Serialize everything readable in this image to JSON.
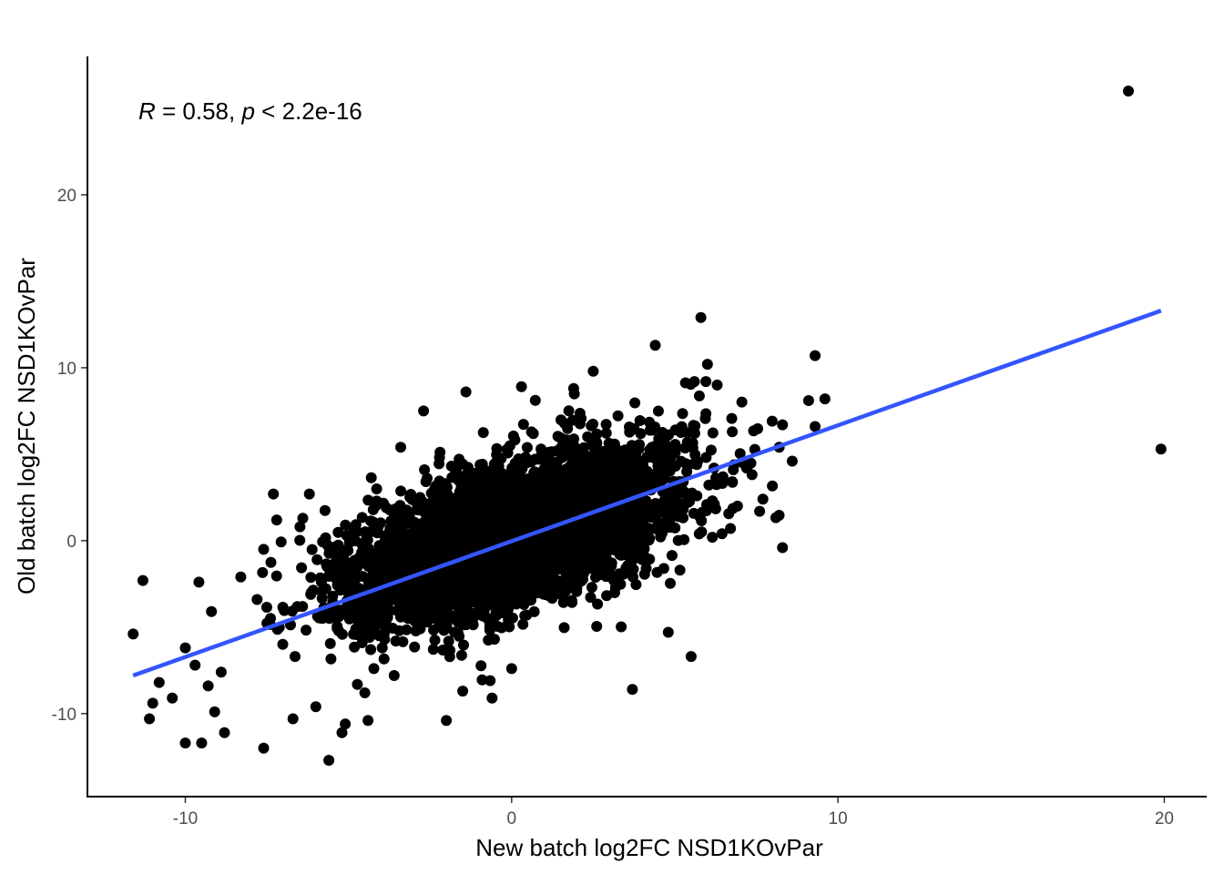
{
  "chart_data": {
    "type": "scatter",
    "title": "",
    "xlabel": "New batch log2FC NSD1KOvPar",
    "ylabel": "Old batch log2FC NSD1KOvPar",
    "xlim": [
      -13,
      21.3
    ],
    "ylim": [
      -14.8,
      28
    ],
    "x_ticks": [
      -10,
      0,
      10,
      20
    ],
    "x_tick_labels": [
      "-10",
      "0",
      "10",
      "20"
    ],
    "y_ticks": [
      -10,
      0,
      10,
      20
    ],
    "y_tick_labels": [
      "-10",
      "0",
      "10",
      "20"
    ],
    "grid": false,
    "annotation": {
      "r_symbol": "R",
      "r_text": " = 0.58, ",
      "p_symbol": "p",
      "p_text": " < 2.2e-16"
    },
    "regression_line": {
      "x": [
        -11.6,
        19.9
      ],
      "y": [
        -7.8,
        13.3
      ],
      "color": "#3355ff"
    },
    "point_color": "#000000",
    "dense_cloud": {
      "n": 5200,
      "x_mean": 0.0,
      "x_sd": 2.4,
      "y_mean": 0.3,
      "y_sd": 2.4,
      "correlation": 0.58
    },
    "points": [
      {
        "x": 18.9,
        "y": 26.0
      },
      {
        "x": 19.9,
        "y": 5.3
      },
      {
        "x": 5.8,
        "y": 12.9
      },
      {
        "x": 4.4,
        "y": 11.3
      },
      {
        "x": 9.3,
        "y": 10.7
      },
      {
        "x": 9.1,
        "y": 8.1
      },
      {
        "x": 9.6,
        "y": 8.2
      },
      {
        "x": 9.3,
        "y": 6.6
      },
      {
        "x": 8.3,
        "y": 6.7
      },
      {
        "x": 8.2,
        "y": 5.4
      },
      {
        "x": 8.6,
        "y": 4.6
      },
      {
        "x": 8.3,
        "y": -0.4
      },
      {
        "x": 7.7,
        "y": 2.4
      },
      {
        "x": 7.6,
        "y": 1.7
      },
      {
        "x": 7.2,
        "y": 4.2
      },
      {
        "x": 6.3,
        "y": 9.0
      },
      {
        "x": 6.0,
        "y": 10.2
      },
      {
        "x": 5.6,
        "y": 9.2
      },
      {
        "x": 5.5,
        "y": -6.7
      },
      {
        "x": 4.8,
        "y": -5.3
      },
      {
        "x": 3.7,
        "y": -8.6
      },
      {
        "x": 2.5,
        "y": 9.8
      },
      {
        "x": 1.9,
        "y": 8.8
      },
      {
        "x": 0.3,
        "y": 8.9
      },
      {
        "x": -1.4,
        "y": 8.6
      },
      {
        "x": -2.7,
        "y": 7.5
      },
      {
        "x": -3.4,
        "y": 5.4
      },
      {
        "x": -3.6,
        "y": -7.8
      },
      {
        "x": -2.0,
        "y": -10.4
      },
      {
        "x": -1.5,
        "y": -8.7
      },
      {
        "x": -0.6,
        "y": -9.1
      },
      {
        "x": 0.0,
        "y": -7.4
      },
      {
        "x": -5.6,
        "y": -12.7
      },
      {
        "x": -5.2,
        "y": -11.1
      },
      {
        "x": -5.1,
        "y": -10.6
      },
      {
        "x": -4.4,
        "y": -10.4
      },
      {
        "x": -6.7,
        "y": -10.3
      },
      {
        "x": -7.6,
        "y": -12.0
      },
      {
        "x": -8.8,
        "y": -11.1
      },
      {
        "x": -9.5,
        "y": -11.7
      },
      {
        "x": -10.0,
        "y": -11.7
      },
      {
        "x": -11.1,
        "y": -10.3
      },
      {
        "x": -11.0,
        "y": -9.4
      },
      {
        "x": -10.4,
        "y": -9.1
      },
      {
        "x": -9.1,
        "y": -9.9
      },
      {
        "x": -9.3,
        "y": -8.4
      },
      {
        "x": -10.8,
        "y": -8.2
      },
      {
        "x": -11.6,
        "y": -5.4
      },
      {
        "x": -11.3,
        "y": -2.3
      },
      {
        "x": -10.0,
        "y": -6.2
      },
      {
        "x": -9.7,
        "y": -7.2
      },
      {
        "x": -8.9,
        "y": -7.6
      },
      {
        "x": -7.3,
        "y": 2.7
      },
      {
        "x": -7.2,
        "y": 1.2
      },
      {
        "x": -6.2,
        "y": 2.7
      },
      {
        "x": -6.4,
        "y": 1.3
      },
      {
        "x": -7.6,
        "y": -0.5
      },
      {
        "x": -8.3,
        "y": -2.1
      },
      {
        "x": -7.8,
        "y": -3.4
      },
      {
        "x": -9.2,
        "y": -4.1
      },
      {
        "x": -4.5,
        "y": -8.8
      },
      {
        "x": -6.0,
        "y": -9.6
      }
    ]
  }
}
